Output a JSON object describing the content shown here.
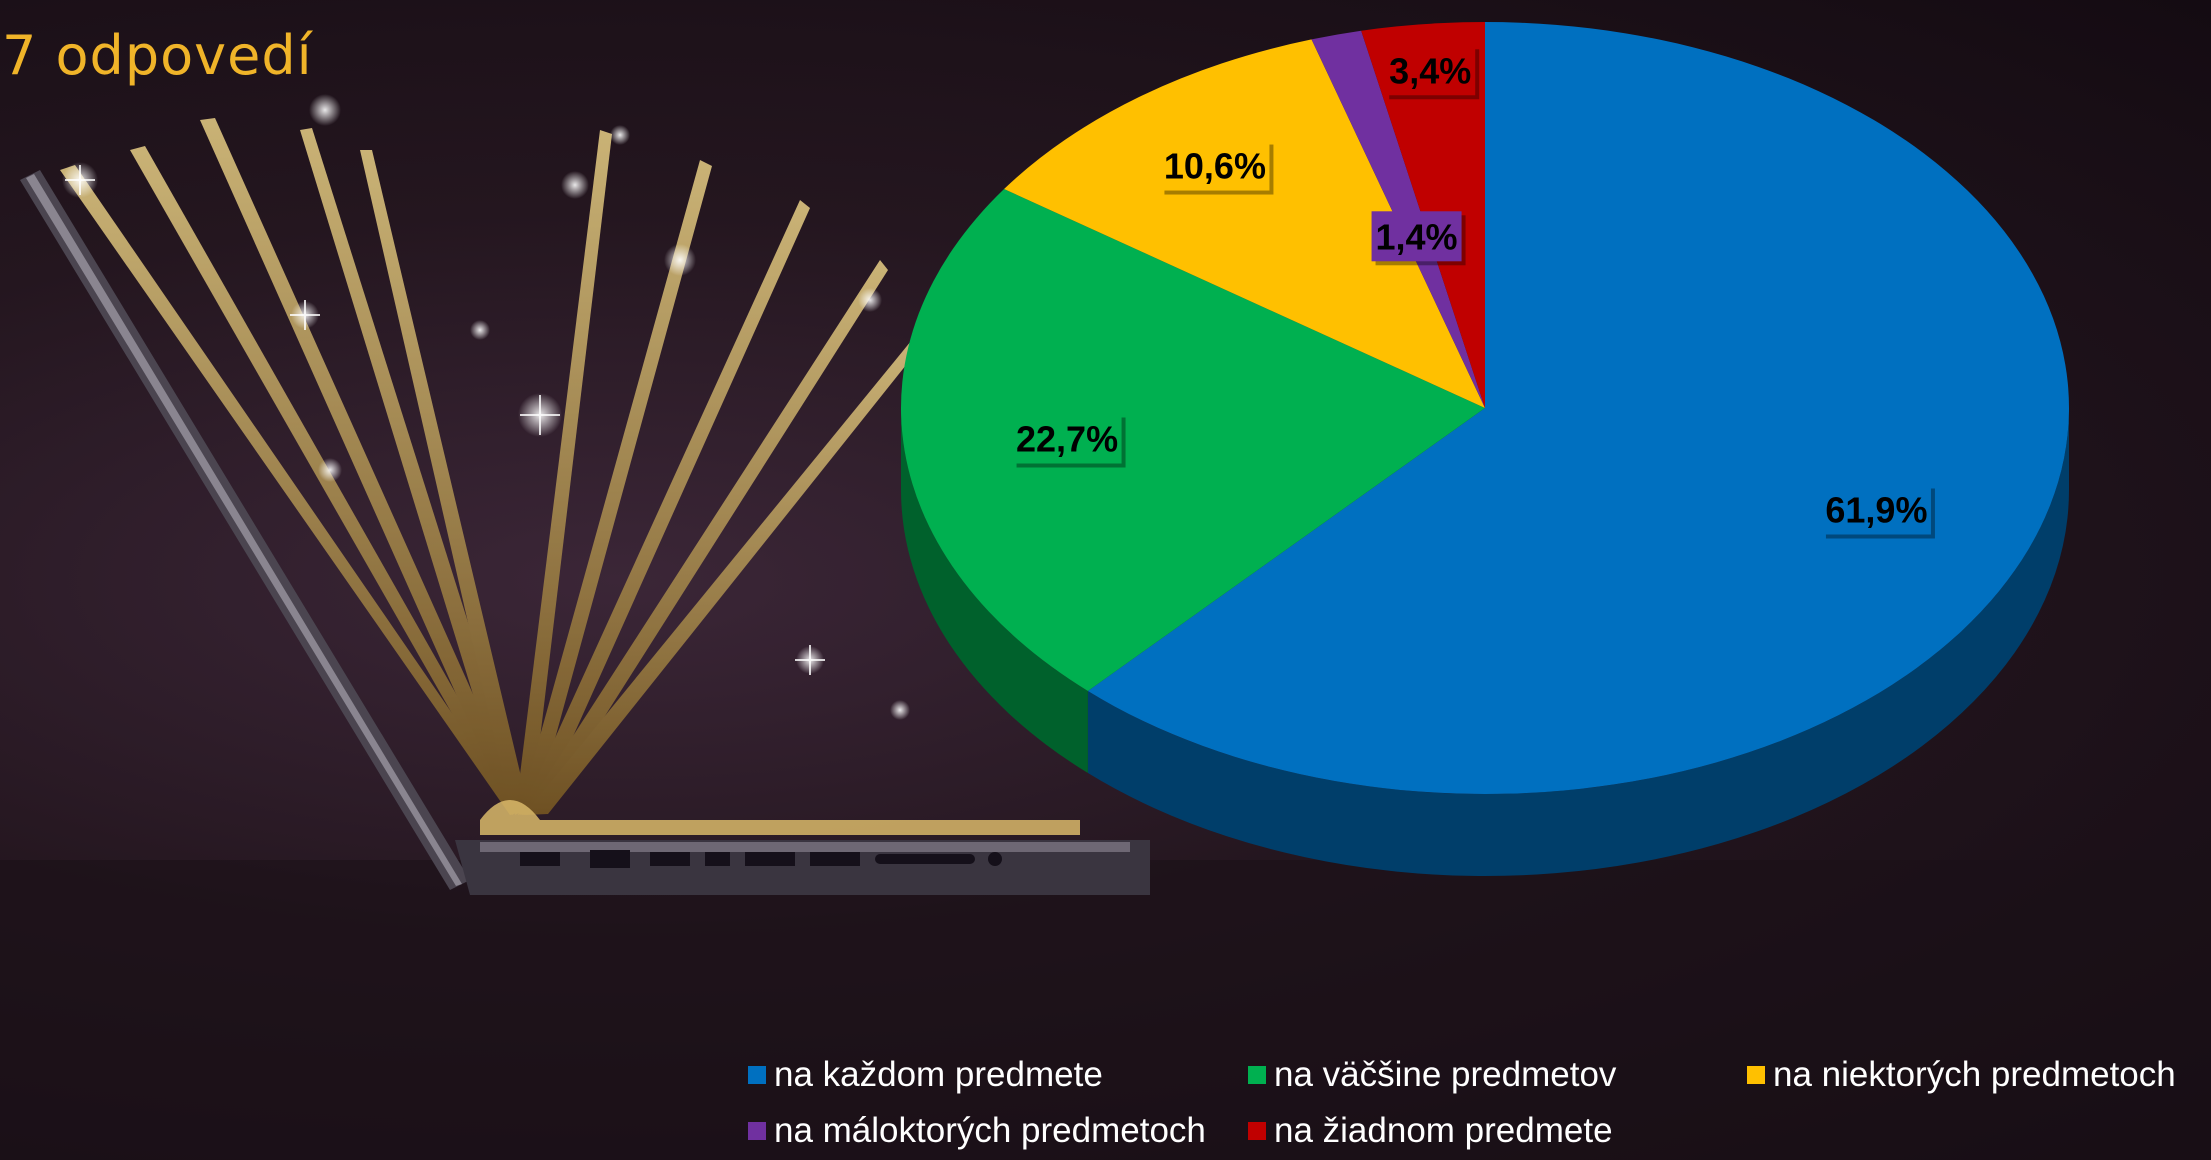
{
  "title": "7 odpovedí",
  "chart_data": {
    "type": "pie",
    "style": "3d",
    "categories": [
      "na každom predmete",
      "na väčšine predmetov",
      "na niektorých predmetoch",
      "na máloktorých predmetoch",
      "na žiadnom predmete"
    ],
    "values": [
      61.9,
      22.7,
      10.6,
      1.4,
      3.4
    ],
    "data_labels": [
      "61,9%",
      "22,7%",
      "10,6%",
      "1,4%",
      "3,4%"
    ],
    "colors": [
      "#0070c0",
      "#00b050",
      "#ffc000",
      "#7030a0",
      "#c00000"
    ],
    "legend_position": "bottom"
  },
  "legend": [
    {
      "label": "na každom predmete",
      "color": "#0070c0"
    },
    {
      "label": "na väčšine predmetov",
      "color": "#00b050"
    },
    {
      "label": "na niektorých predmetoch",
      "color": "#ffc000"
    },
    {
      "label": "na máloktorých predmetoch",
      "color": "#7030a0"
    },
    {
      "label": "na žiadnom predmete",
      "color": "#c00000"
    }
  ]
}
